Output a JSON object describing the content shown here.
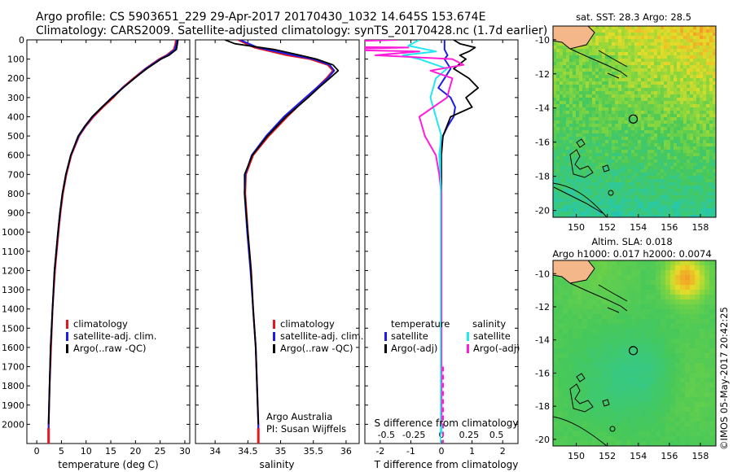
{
  "header": {
    "line1": "Argo profile: CS 5903651_229 29-Apr-2017 20170430_1032 14.645S 153.674E",
    "line2": "Climatology: CARS2009. Satellite-adjusted climatology: synTS_20170428.nc (1.7d earlier)"
  },
  "colors": {
    "climatology": "#e8141e",
    "satellite": "#1c1ce8",
    "argo": "#000000",
    "sat_salinity": "#22e6f0",
    "argo_salinity": "#ff1dd8"
  },
  "chart_data": [
    {
      "type": "line",
      "name": "temperature",
      "xlabel": "temperature (deg C)",
      "ylabel": "",
      "xlim": [
        -2,
        31
      ],
      "ylim": [
        2100,
        0
      ],
      "xticks": [
        0,
        5,
        10,
        15,
        20,
        25,
        30
      ],
      "yticks": [
        0,
        100,
        200,
        300,
        400,
        500,
        600,
        700,
        800,
        900,
        1000,
        1100,
        1200,
        1300,
        1400,
        1500,
        1600,
        1700,
        1800,
        1900,
        2000
      ],
      "legend": [
        "climatology",
        "satellite-adj. clim.",
        "Argo(..raw -QC)"
      ],
      "series": [
        {
          "name": "climatology",
          "depth": [
            0,
            20,
            50,
            80,
            100,
            150,
            200,
            250,
            300,
            350,
            400,
            450,
            500,
            600,
            700,
            800,
            900,
            1000,
            1200,
            1400,
            1600,
            1800,
            2000,
            2050
          ],
          "values": [
            28.2,
            28.1,
            27.8,
            26.3,
            24.8,
            22.0,
            19.6,
            17.3,
            15.5,
            13.4,
            11.5,
            9.9,
            8.6,
            7.0,
            6.0,
            5.3,
            4.8,
            4.4,
            3.7,
            3.2,
            2.9,
            2.6,
            2.4,
            2.4
          ]
        },
        {
          "name": "satellite-adj. clim.",
          "depth": [
            0,
            20,
            50,
            80,
            100,
            150,
            200,
            250,
            300,
            350,
            400,
            450,
            500,
            600,
            700,
            800,
            900,
            1000,
            1200,
            1400,
            1600,
            1800,
            2000,
            2050
          ],
          "values": [
            28.4,
            28.3,
            28.0,
            26.5,
            25.0,
            22.1,
            19.8,
            17.4,
            15.2,
            13.2,
            11.3,
            9.8,
            8.5,
            6.9,
            5.9,
            5.2,
            4.7,
            4.3,
            3.6,
            3.2,
            2.8,
            2.6,
            2.4,
            2.4
          ]
        },
        {
          "name": "Argo(..raw -QC)",
          "depth": [
            0,
            20,
            50,
            80,
            100,
            150,
            200,
            250,
            300,
            350,
            400,
            450,
            500,
            600,
            700,
            800,
            900,
            1000,
            1200,
            1400,
            1600,
            1800,
            2000
          ],
          "values": [
            28.6,
            28.5,
            28.3,
            26.8,
            25.2,
            22.3,
            19.8,
            17.5,
            15.3,
            13.2,
            11.2,
            9.7,
            8.4,
            6.9,
            5.9,
            5.2,
            4.7,
            4.3,
            3.6,
            3.2,
            2.8,
            2.6,
            2.4
          ]
        }
      ]
    },
    {
      "type": "line",
      "name": "salinity",
      "xlabel": "salinity",
      "xlim": [
        33.7,
        36.2
      ],
      "ylim": [
        2100,
        0
      ],
      "xticks": [
        34,
        34.5,
        35,
        35.5,
        36
      ],
      "xticklabels": [
        "34",
        "34.5",
        "35",
        "35.5",
        "36"
      ],
      "legend": [
        "climatology",
        "satellite-adj. clim.",
        "Argo(..raw -QC)"
      ],
      "series": [
        {
          "name": "climatology",
          "depth": [
            0,
            40,
            80,
            100,
            130,
            160,
            200,
            250,
            300,
            400,
            500,
            600,
            700,
            800,
            1000,
            1200,
            1400,
            1600,
            1800,
            2000,
            2050
          ],
          "values": [
            34.35,
            34.6,
            35.1,
            35.45,
            35.72,
            35.8,
            35.7,
            35.55,
            35.4,
            35.1,
            34.82,
            34.58,
            34.47,
            34.46,
            34.5,
            34.55,
            34.58,
            34.62,
            34.64,
            34.66,
            34.66
          ]
        },
        {
          "name": "satellite-adj. clim.",
          "depth": [
            0,
            40,
            80,
            100,
            130,
            160,
            200,
            250,
            300,
            400,
            500,
            600,
            700,
            800,
            1000,
            1200,
            1400,
            1600,
            1800,
            2000,
            2050
          ],
          "values": [
            34.38,
            34.65,
            35.2,
            35.5,
            35.75,
            35.82,
            35.72,
            35.55,
            35.38,
            35.05,
            34.78,
            34.56,
            34.46,
            34.45,
            34.49,
            34.54,
            34.58,
            34.62,
            34.64,
            34.66,
            34.66
          ]
        },
        {
          "name": "Argo(..raw -QC)",
          "depth": [
            0,
            20,
            50,
            80,
            100,
            130,
            160,
            200,
            250,
            300,
            400,
            500,
            600,
            700,
            800,
            1000,
            1200,
            1400,
            1600,
            1800,
            2000
          ],
          "values": [
            34.15,
            34.3,
            34.9,
            35.3,
            35.55,
            35.8,
            35.88,
            35.75,
            35.58,
            35.42,
            35.08,
            34.8,
            34.57,
            34.45,
            34.45,
            34.5,
            34.55,
            34.58,
            34.62,
            34.64,
            34.66
          ]
        }
      ]
    },
    {
      "type": "line",
      "name": "difference",
      "xlabel_bottom": "T difference from climatology",
      "xlabel_top": "S difference from climatology",
      "xlim": [
        -2.5,
        2.5
      ],
      "ylim": [
        2100,
        0
      ],
      "xticks": [
        -2,
        -1,
        0,
        1,
        2
      ],
      "top_ticks": [
        -0.5,
        -0.25,
        0,
        0.25,
        0.5
      ],
      "top_ticklabels": [
        "-0.5",
        "-0.25",
        "0",
        "0.25",
        "0.5"
      ],
      "legend_temperature_title": "temperature",
      "legend_salinity_title": "salinity",
      "legend": [
        "satellite",
        "Argo(-adj)",
        "satellite",
        "Argo(-adj)"
      ],
      "series": [
        {
          "name": "temperature satellite",
          "depth": [
            0,
            50,
            80,
            100,
            150,
            200,
            250,
            300,
            350,
            400,
            450,
            500,
            600,
            700,
            800,
            1000,
            1500,
            2000,
            2050
          ],
          "values": [
            0.1,
            0.1,
            0.2,
            0.1,
            0.3,
            0.1,
            -0.1,
            0.3,
            0.45,
            0.4,
            0.2,
            0.05,
            -0.05,
            0,
            0,
            0,
            0,
            0,
            0
          ]
        },
        {
          "name": "temperature Argo(-adj)",
          "depth": [
            0,
            20,
            40,
            60,
            80,
            100,
            150,
            200,
            250,
            300,
            350,
            400,
            500,
            600,
            800,
            1000,
            1500,
            2000
          ],
          "values": [
            0.4,
            0.6,
            1.1,
            0.9,
            0.6,
            0.8,
            0.4,
            0.9,
            1.2,
            0.8,
            1.0,
            0.3,
            0.05,
            0,
            0,
            0,
            0,
            0
          ]
        },
        {
          "name": "salinity satellite",
          "depth": [
            0,
            30,
            60,
            80,
            100,
            150,
            200,
            300,
            400,
            500,
            600,
            800,
            1000,
            1500,
            2000,
            2050
          ],
          "values": [
            -0.2,
            -0.3,
            -0.05,
            -0.35,
            -0.2,
            0.05,
            -0.05,
            -0.1,
            -0.05,
            0,
            -0.02,
            0,
            0,
            0,
            0,
            0
          ]
        },
        {
          "name": "salinity Argo(-adj)",
          "depth": [
            0,
            20,
            30,
            40,
            50,
            60,
            80,
            100,
            130,
            160,
            200,
            300,
            400,
            500,
            600,
            700,
            800,
            1000,
            1500,
            2000
          ],
          "values": [
            -0.4,
            -1.6,
            -2.0,
            -0.3,
            -1.1,
            -0.2,
            -0.6,
            0.1,
            0.2,
            -0.1,
            0.1,
            0.05,
            -0.2,
            -0.15,
            -0.05,
            -0.02,
            0,
            0,
            0,
            0
          ]
        }
      ],
      "annotation": {
        "line1": "Argo Australia",
        "line2": "PI: Susan Wijffels"
      }
    },
    {
      "type": "heatmap",
      "name": "sst_map",
      "title": "sat. SST: 28.3 Argo: 28.5",
      "xticks": [
        150,
        152,
        154,
        156,
        158
      ],
      "yticks": [
        -10,
        -12,
        -14,
        -16,
        -18,
        -20
      ],
      "argo_position": [
        153.674,
        -14.645
      ]
    },
    {
      "type": "heatmap",
      "name": "sla_map",
      "title_line1": "Altim. SLA: 0.018",
      "title_line2": "Argo h1000: 0.017 h2000: 0.0074",
      "xticks": [
        150,
        152,
        154,
        156,
        158
      ],
      "yticks": [
        -10,
        -12,
        -14,
        -16,
        -18,
        -20
      ],
      "argo_position": [
        153.674,
        -14.645
      ]
    }
  ],
  "footer_stamp": "©IMOS 05-May-2017 20:42:25"
}
